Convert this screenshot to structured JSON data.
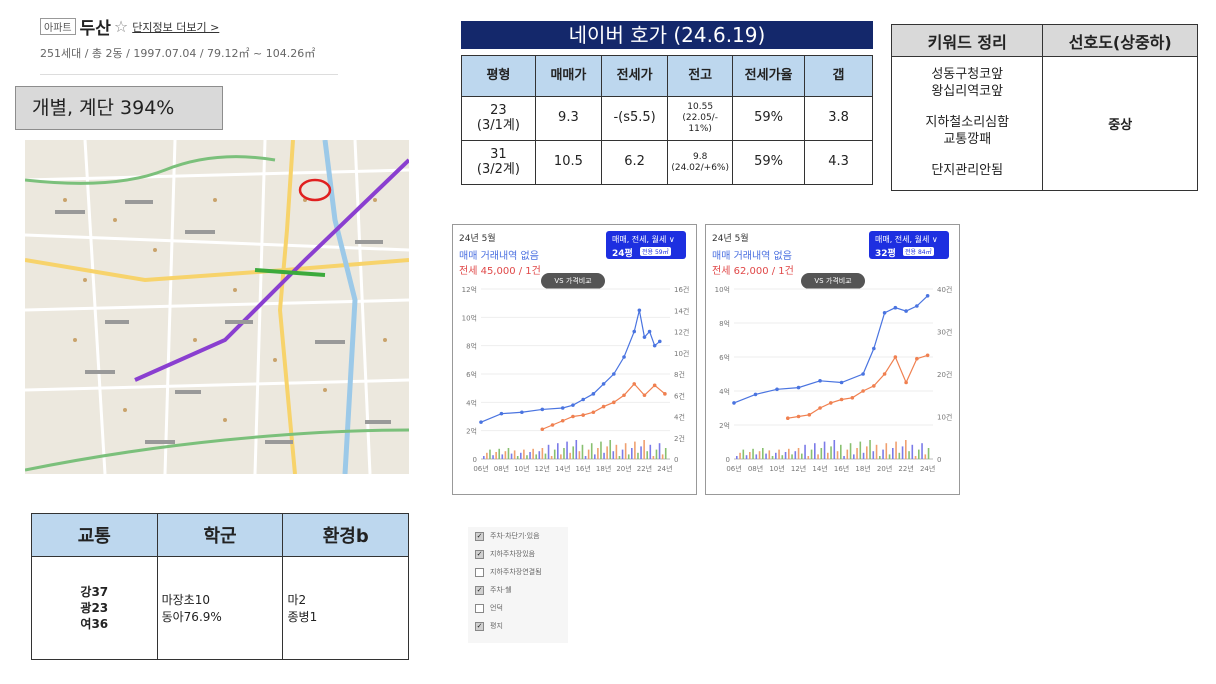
{
  "header": {
    "badge": "아파트",
    "name": "두산",
    "star_icon": "☆",
    "info_link": "단지정보 더보기 >",
    "summary": "251세대 / 총 2동 / 1997.07.04 / 79.12㎡ ~ 104.26㎡"
  },
  "calc_box": "개별, 계단 394%",
  "naver": {
    "title": "네이버 호가 (24.6.19)",
    "headers": [
      "평형",
      "매매가",
      "전세가",
      "전고",
      "전세가율",
      "갭"
    ],
    "rows": [
      {
        "size": "23",
        "size2": "(3/1계)",
        "sale": "9.3",
        "jeonse": "-(s5.5)",
        "high": "10.55",
        "high2": "(22.05/-",
        "high3": "11%)",
        "ratio": "59%",
        "gap": "3.8"
      },
      {
        "size": "31",
        "size2": "(3/2계)",
        "sale": "10.5",
        "jeonse": "6.2",
        "high": "9.8",
        "high2": "(24.02/+6%)",
        "high3": "",
        "ratio": "59%",
        "gap": "4.3"
      }
    ]
  },
  "keywords": {
    "header_keyword": "키워드 정리",
    "header_pref": "선호도(상중하)",
    "lines": [
      "성동구청코앞",
      "왕십리역코앞",
      "지하철소리심함",
      "교통깡패",
      "단지관리안됨"
    ],
    "preference": "중상"
  },
  "charts": [
    {
      "period": "24년 5월",
      "no_deal": "매매 거래내역 없음",
      "deal": "전세 45,000 / 1건",
      "filter": "매매, 전세, 월세 ∨",
      "size_label": "24평",
      "area_label": "전용 59㎡",
      "vs": "VS 가격비교"
    },
    {
      "period": "24년 5월",
      "no_deal": "매매 거래내역 없음",
      "deal": "전세 62,000 / 1건",
      "filter": "매매, 전세, 월세 ∨",
      "size_label": "32평",
      "area_label": "전용 84㎡",
      "vs": "VS 가격비교"
    }
  ],
  "chart_data": [
    {
      "type": "line",
      "left_axis_ticks": [
        "0",
        "2억",
        "4억",
        "6억",
        "8억",
        "10억",
        "12억"
      ],
      "right_axis_ticks": [
        "0",
        "2건",
        "4건",
        "6건",
        "8건",
        "10건",
        "12건",
        "14건",
        "16건"
      ],
      "x_ticks": [
        "06년",
        "08년",
        "10년",
        "12년",
        "14년",
        "16년",
        "18년",
        "20년",
        "22년",
        "24년"
      ],
      "ylim": [
        0,
        12
      ],
      "series": [
        {
          "color": "#4a74e0",
          "x": [
            2006,
            2008,
            2010,
            2012,
            2014,
            2015,
            2016,
            2017,
            2018,
            2019,
            2020,
            2021,
            2021.5,
            2022,
            2022.5,
            2023,
            2023.5
          ],
          "values": [
            2.6,
            3.2,
            3.3,
            3.5,
            3.6,
            3.8,
            4.2,
            4.6,
            5.3,
            6.0,
            7.2,
            9.0,
            10.5,
            8.6,
            9.0,
            8.0,
            8.3
          ]
        },
        {
          "color": "#f08050",
          "x": [
            2012,
            2013,
            2014,
            2015,
            2016,
            2017,
            2018,
            2019,
            2020,
            2021,
            2022,
            2023,
            2024
          ],
          "values": [
            2.1,
            2.4,
            2.7,
            3.0,
            3.1,
            3.3,
            3.7,
            4.0,
            4.5,
            5.3,
            4.5,
            5.2,
            4.6
          ]
        }
      ]
    },
    {
      "type": "line",
      "left_axis_ticks": [
        "0",
        "2억",
        "4억",
        "6억",
        "8억",
        "10억"
      ],
      "right_axis_ticks": [
        "0",
        "10건",
        "20건",
        "30건",
        "40건"
      ],
      "x_ticks": [
        "06년",
        "08년",
        "10년",
        "12년",
        "14년",
        "16년",
        "18년",
        "20년",
        "22년",
        "24년"
      ],
      "ylim": [
        0,
        10
      ],
      "series": [
        {
          "color": "#4a74e0",
          "x": [
            2006,
            2008,
            2010,
            2012,
            2014,
            2016,
            2018,
            2019,
            2020,
            2021,
            2022,
            2023,
            2024
          ],
          "values": [
            3.3,
            3.8,
            4.1,
            4.2,
            4.6,
            4.5,
            5.0,
            6.5,
            8.6,
            8.9,
            8.7,
            9.0,
            9.6
          ]
        },
        {
          "color": "#f08050",
          "x": [
            2011,
            2012,
            2013,
            2014,
            2015,
            2016,
            2017,
            2018,
            2019,
            2020,
            2021,
            2022,
            2023,
            2024
          ],
          "values": [
            2.4,
            2.5,
            2.6,
            3.0,
            3.3,
            3.5,
            3.6,
            4.0,
            4.3,
            5.0,
            6.0,
            4.5,
            5.9,
            6.1
          ]
        }
      ]
    }
  ],
  "bottom": {
    "headers": [
      "교통",
      "학군",
      "환경b"
    ],
    "transport": [
      "강37",
      "광23",
      "여36"
    ],
    "school": [
      "마장초10",
      "동아76.9%"
    ],
    "environment": [
      "마2",
      "종병1"
    ]
  },
  "checklist": [
    {
      "label": "주차·차단기·있음",
      "checked": true
    },
    {
      "label": "지하주차장있음",
      "checked": true
    },
    {
      "label": "지하주차장연결됨",
      "checked": false
    },
    {
      "label": "주차·쉘",
      "checked": true
    },
    {
      "label": "언덕",
      "checked": false
    },
    {
      "label": "평지",
      "checked": true
    }
  ]
}
